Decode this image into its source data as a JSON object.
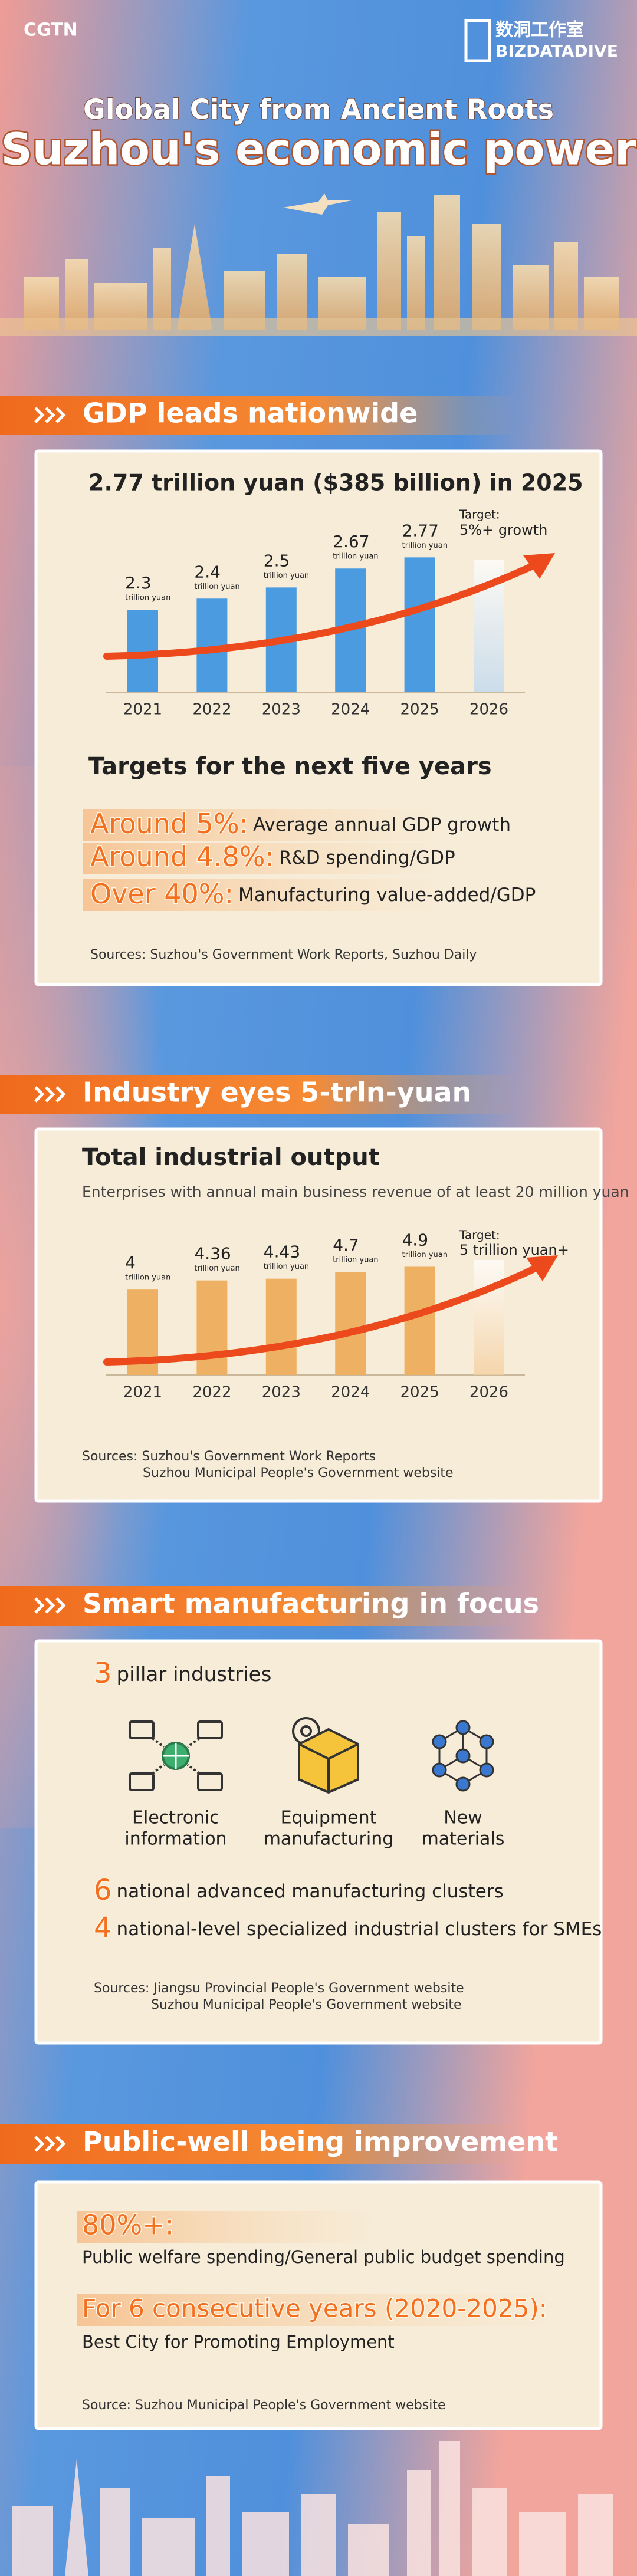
{
  "header": {
    "logo": "CGTN",
    "brand_cn": "数洞工作室",
    "brand_en": "BIZDATADIVE",
    "title": "Global City from Ancient Roots",
    "subtitle": "Suzhou's economic power"
  },
  "sections": [
    "GDP leads nationwide",
    "Industry eyes 5-trln-yuan",
    "Smart manufacturing in focus",
    "Public-well being improvement"
  ],
  "chart_data": [
    {
      "type": "bar",
      "title": "2.77 trillion yuan ($385 billion) in 2025",
      "categories": [
        "2021",
        "2022",
        "2023",
        "2024",
        "2025",
        "2026"
      ],
      "values": [
        2.3,
        2.4,
        2.5,
        2.67,
        2.77,
        null
      ],
      "unit": "trillion yuan",
      "annotation": {
        "label": "Target:",
        "text": "5%+ growth"
      },
      "color": "#4a9be0",
      "ylim": [
        1.56,
        3.01
      ]
    },
    {
      "type": "bar",
      "title": "Total industrial output",
      "subtitle": "Enterprises with annual main business revenue of at least 20 million yuan",
      "categories": [
        "2021",
        "2022",
        "2023",
        "2024",
        "2025",
        "2026"
      ],
      "values": [
        4,
        4.36,
        4.43,
        4.7,
        4.9,
        null
      ],
      "unit": "trillion yuan",
      "annotation": {
        "label": "Target:",
        "text": "5 trillion yuan+"
      },
      "color": "#eeb163",
      "ylim": [
        0.63,
        6.33
      ],
      "sources": [
        "Sources: Suzhou's Government Work Reports",
        "Suzhou Municipal People's Government website"
      ]
    }
  ],
  "gdp_targets": {
    "title": "Targets for the next five years",
    "items": [
      {
        "value": "Around 5%:",
        "label": "Average annual GDP growth"
      },
      {
        "value": "Around 4.8%:",
        "label": "R&D spending/GDP"
      },
      {
        "value": "Over 40%:",
        "label": "Manufacturing value-added/GDP"
      }
    ],
    "sources": "Sources: Suzhou's Government Work Reports, Suzhou Daily"
  },
  "manufacturing": {
    "pillar": {
      "count": 3,
      "label": "pillar industries"
    },
    "industries": [
      [
        "Electronic",
        "information"
      ],
      [
        "Equipment",
        "manufacturing"
      ],
      [
        "New",
        "materials"
      ]
    ],
    "clusters": [
      {
        "count": 6,
        "label": "national advanced manufacturing clusters"
      },
      {
        "count": 4,
        "label": "national-level specialized industrial clusters for SMEs"
      }
    ],
    "sources": [
      "Sources: Jiangsu Provincial People's Government website",
      "Suzhou Municipal People's Government website"
    ]
  },
  "wellbeing": {
    "items": [
      {
        "value": "80%+:",
        "label": "Public welfare spending/General public budget spending"
      },
      {
        "value": "For 6 consecutive years (2020-2025):",
        "label": "Best City for Promoting Employment"
      }
    ],
    "sources": "Source: Suzhou Municipal People's Government website"
  }
}
